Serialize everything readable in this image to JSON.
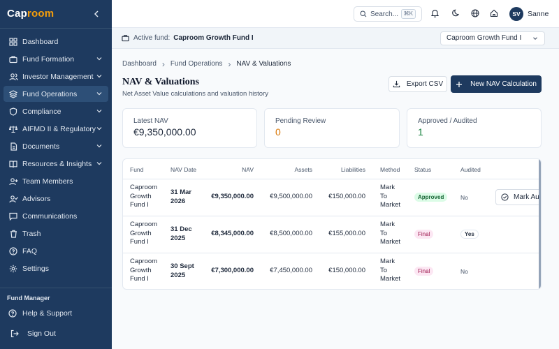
{
  "brand": {
    "name_a": "Cap",
    "name_b": "room"
  },
  "sidebar": {
    "items": [
      {
        "label": "Dashboard",
        "icon": "grid-icon"
      },
      {
        "label": "Fund Formation",
        "icon": "briefcase-icon"
      },
      {
        "label": "Investor Management",
        "icon": "users-icon"
      },
      {
        "label": "Fund Operations",
        "icon": "layers-icon"
      },
      {
        "label": "Compliance",
        "icon": "shield-icon"
      },
      {
        "label": "AIFMD II & Regulatory",
        "icon": "scale-icon"
      },
      {
        "label": "Documents",
        "icon": "file-icon"
      },
      {
        "label": "Resources & Insights",
        "icon": "book-icon"
      },
      {
        "label": "Team Members",
        "icon": "user-plus-icon"
      },
      {
        "label": "Advisors",
        "icon": "user-check-icon"
      },
      {
        "label": "Communications",
        "icon": "message-icon"
      },
      {
        "label": "Trash",
        "icon": "trash-icon"
      },
      {
        "label": "FAQ",
        "icon": "help-circle-icon"
      },
      {
        "label": "Settings",
        "icon": "gear-icon"
      }
    ],
    "role": "Fund Manager",
    "help": "Help & Support",
    "signout": "Sign Out"
  },
  "topbar": {
    "search_label": "Search...",
    "kbd": "⌘K",
    "avatar": "SV",
    "user": "Sanne"
  },
  "fundbar": {
    "label": "Active fund:",
    "fund": "Caproom Growth Fund I",
    "select_value": "Caproom Growth Fund I"
  },
  "breadcrumb": {
    "items": [
      "Dashboard",
      "Fund Operations",
      "NAV & Valuations"
    ],
    "sep": "›"
  },
  "page": {
    "title": "NAV & Valuations",
    "subtitle": "Net Asset Value calculations and valuation history",
    "export_label": "Export CSV",
    "new_label": "New NAV Calculation"
  },
  "cards": [
    {
      "label": "Latest NAV",
      "value": "€9,350,000.00",
      "color": "#1e293b"
    },
    {
      "label": "Pending Review",
      "value": "0",
      "color": "#d97706"
    },
    {
      "label": "Approved / Audited",
      "value": "1",
      "color": "#15803d"
    }
  ],
  "table": {
    "headers": [
      "Fund",
      "NAV Date",
      "NAV",
      "Assets",
      "Liabilities",
      "Method",
      "Status",
      "Audited"
    ],
    "rows": [
      {
        "fund": [
          "Caproom",
          "Growth",
          "Fund I"
        ],
        "date": [
          "31 Mar",
          "2026"
        ],
        "nav": "€9,350,000.00",
        "assets": "€9,500,000.00",
        "liabilities": "€150,000.00",
        "method": [
          "Mark",
          "To",
          "Market"
        ],
        "status": "Approved",
        "audited": "No",
        "action": "Mark Audited"
      },
      {
        "fund": [
          "Caproom",
          "Growth",
          "Fund I"
        ],
        "date": [
          "31 Dec",
          "2025"
        ],
        "nav": "€8,345,000.00",
        "assets": "€8,500,000.00",
        "liabilities": "€155,000.00",
        "method": [
          "Mark",
          "To",
          "Market"
        ],
        "status": "Final",
        "audited": "Yes"
      },
      {
        "fund": [
          "Caproom",
          "Growth",
          "Fund I"
        ],
        "date": [
          "30 Sept",
          "2025"
        ],
        "nav": "€7,300,000.00",
        "assets": "€7,450,000.00",
        "liabilities": "€150,000.00",
        "method": [
          "Mark",
          "To",
          "Market"
        ],
        "status": "Final",
        "audited": "No"
      }
    ]
  }
}
